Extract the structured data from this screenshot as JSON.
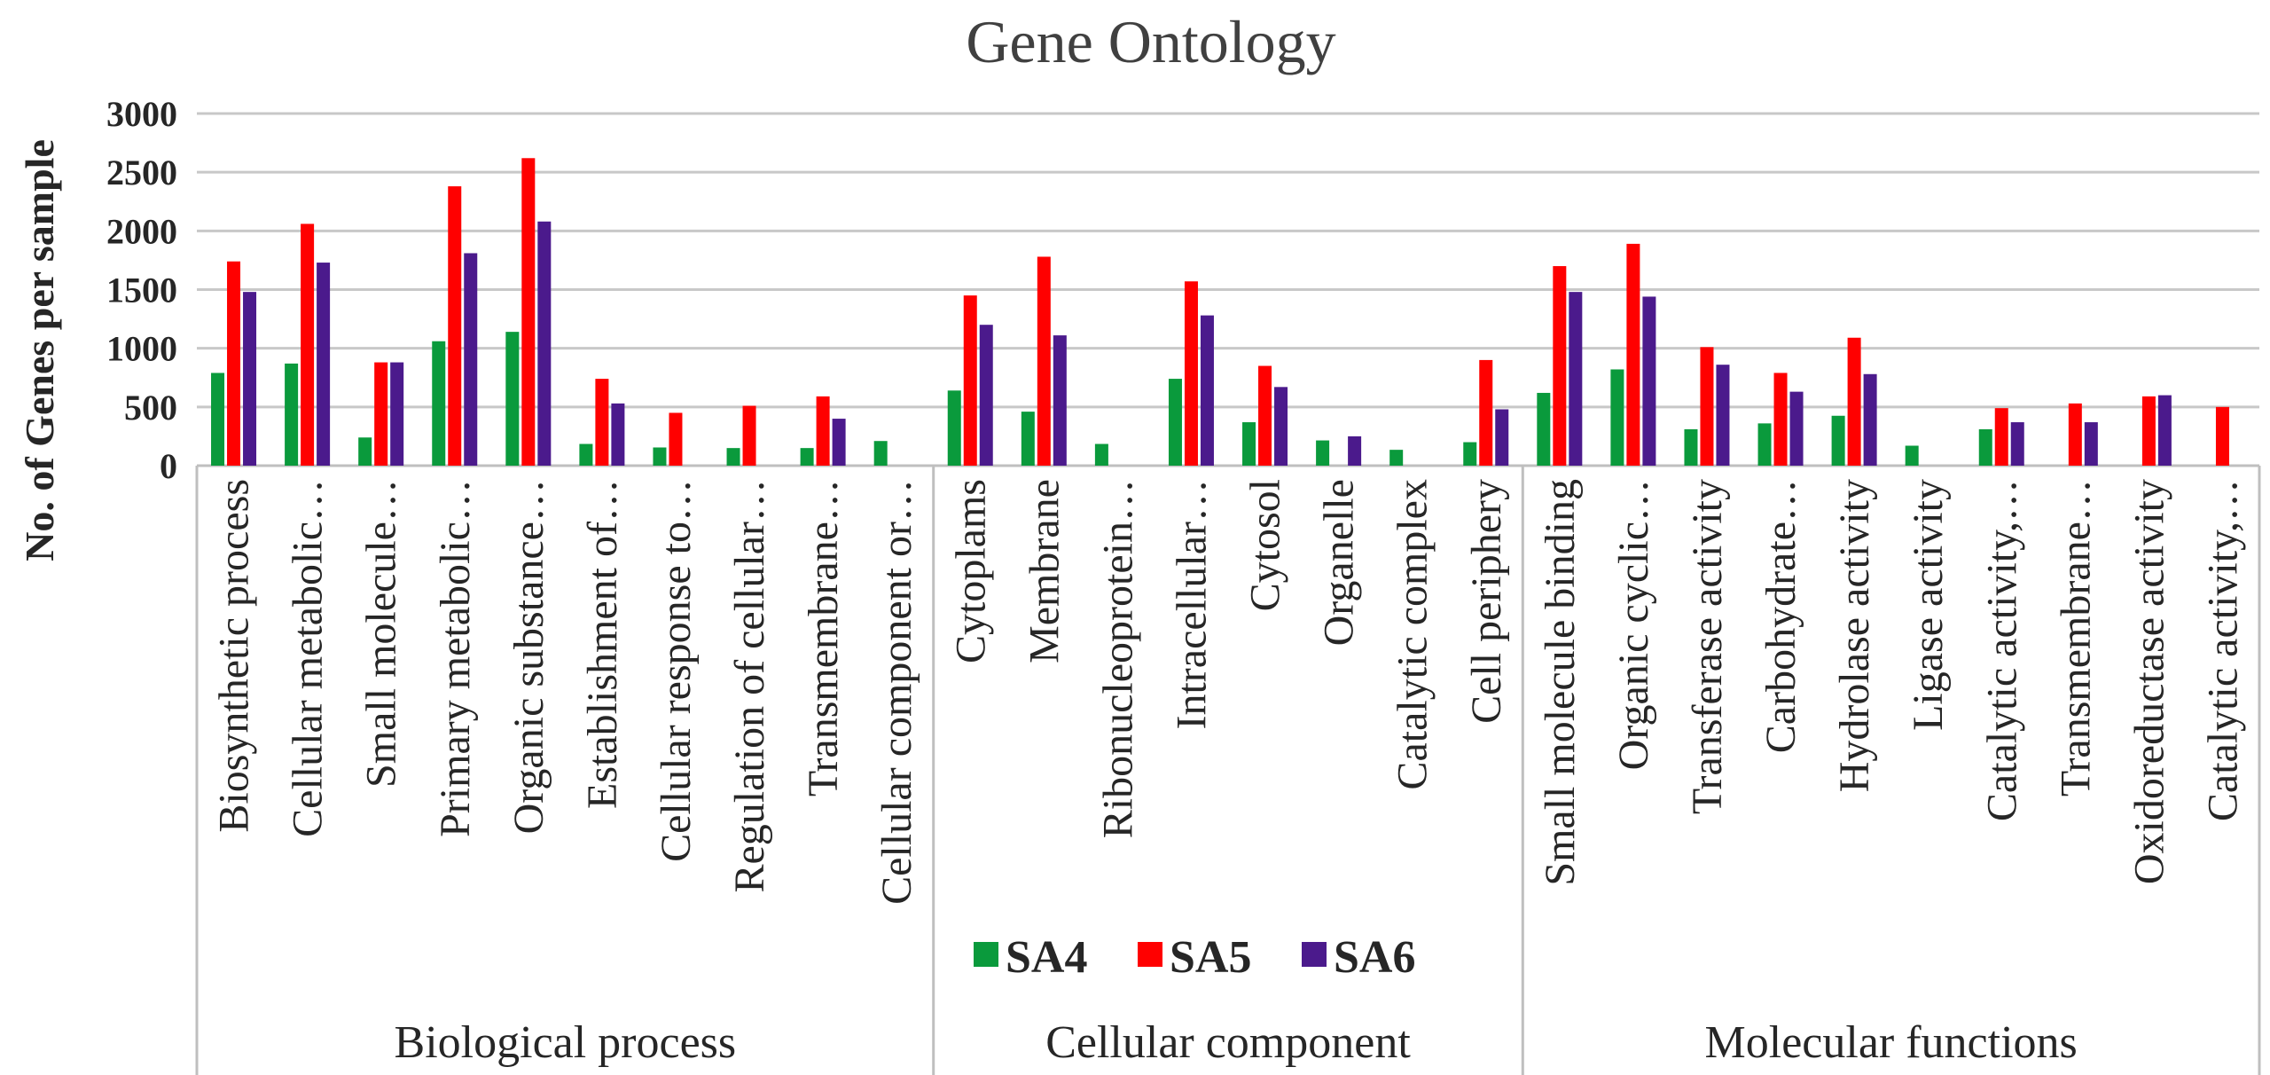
{
  "chart_data": {
    "type": "bar",
    "title": "Gene Ontology",
    "ylabel": "No. of Genes per sample",
    "xlabel": "",
    "ylim": [
      0,
      3000
    ],
    "yticks": [
      0,
      500,
      1000,
      1500,
      2000,
      2500,
      3000
    ],
    "grid": true,
    "legend_position": "bottom-center",
    "groups": [
      {
        "name": "Biological process",
        "count": 10
      },
      {
        "name": "Cellular component",
        "count": 8
      },
      {
        "name": "Molecular functions",
        "count": 10
      }
    ],
    "categories": [
      "Biosynthetic process",
      "Cellular metabolic…",
      "Small molecule…",
      "Primary metabolic…",
      "Organic substance…",
      "Establishment of…",
      "Cellular response to…",
      "Regulation of cellular…",
      "Transmembrane…",
      "Cellular component or…",
      "Cytoplams",
      "Membrane",
      "Ribonucleoprotein…",
      "Intracellular…",
      "Cytosol",
      "Organelle",
      "Catalytic complex",
      "Cell periphery",
      "Small molecule binding",
      "Organic cyclic…",
      "Transferase activity",
      "Carbohydrate…",
      "Hydrolase activity",
      "Ligase activity",
      "Catalytic activity,…",
      "Transmembrane…",
      "Oxidoreductase activity",
      "Catalytic activity,…"
    ],
    "series": [
      {
        "name": "SA4",
        "color": "#0a9a3c",
        "values": [
          790,
          870,
          240,
          1060,
          1140,
          185,
          155,
          150,
          150,
          210,
          640,
          460,
          185,
          740,
          370,
          215,
          135,
          200,
          620,
          820,
          310,
          360,
          425,
          170,
          310,
          0,
          0,
          0
        ]
      },
      {
        "name": "SA5",
        "color": "#ff0000",
        "values": [
          1740,
          2060,
          880,
          2380,
          2620,
          740,
          450,
          510,
          590,
          0,
          1450,
          1780,
          0,
          1570,
          850,
          0,
          0,
          900,
          1700,
          1890,
          1010,
          790,
          1090,
          0,
          490,
          530,
          590,
          500
        ]
      },
      {
        "name": "SA6",
        "color": "#4b1a8c",
        "values": [
          1480,
          1730,
          880,
          1810,
          2080,
          530,
          0,
          0,
          400,
          0,
          1200,
          1110,
          0,
          1280,
          670,
          250,
          0,
          480,
          1480,
          1440,
          860,
          630,
          780,
          0,
          370,
          370,
          600,
          0
        ]
      }
    ]
  }
}
